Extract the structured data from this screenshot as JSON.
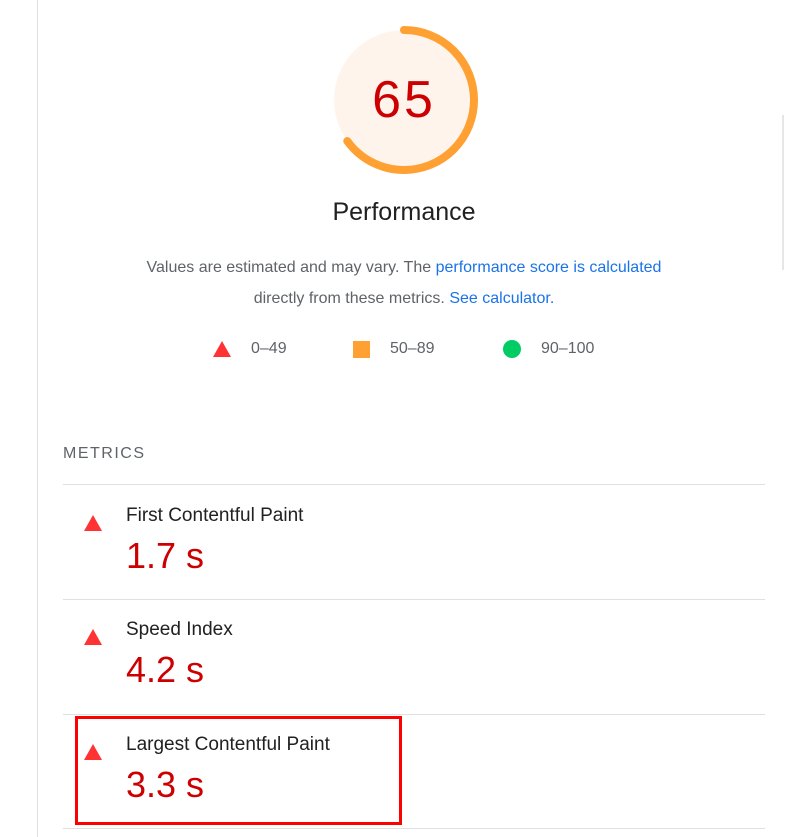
{
  "score": {
    "value": "65",
    "fraction": 0.65,
    "ring_color": "#ffa033",
    "bg_color": "#fff4ec",
    "text_color": "#cc0000"
  },
  "title": "Performance",
  "description": {
    "text_before": "Values are estimated and may vary. The ",
    "link1": "performance score is calculated",
    "text_mid": "directly from these metrics. ",
    "link2": "See calculator."
  },
  "legend": [
    {
      "icon": "red-triangle-icon",
      "label": "0–49",
      "color": "#ff3333"
    },
    {
      "icon": "orange-square-icon",
      "label": "50–89",
      "color": "#ffa033"
    },
    {
      "icon": "green-circle-icon",
      "label": "90–100",
      "color": "#00cc66"
    }
  ],
  "metrics_heading": "METRICS",
  "metrics": [
    {
      "label": "First Contentful Paint",
      "value": "1.7 s",
      "status": "fail"
    },
    {
      "label": "Speed Index",
      "value": "4.2 s",
      "status": "fail"
    },
    {
      "label": "Largest Contentful Paint",
      "value": "3.3 s",
      "status": "fail",
      "highlighted": true
    }
  ]
}
